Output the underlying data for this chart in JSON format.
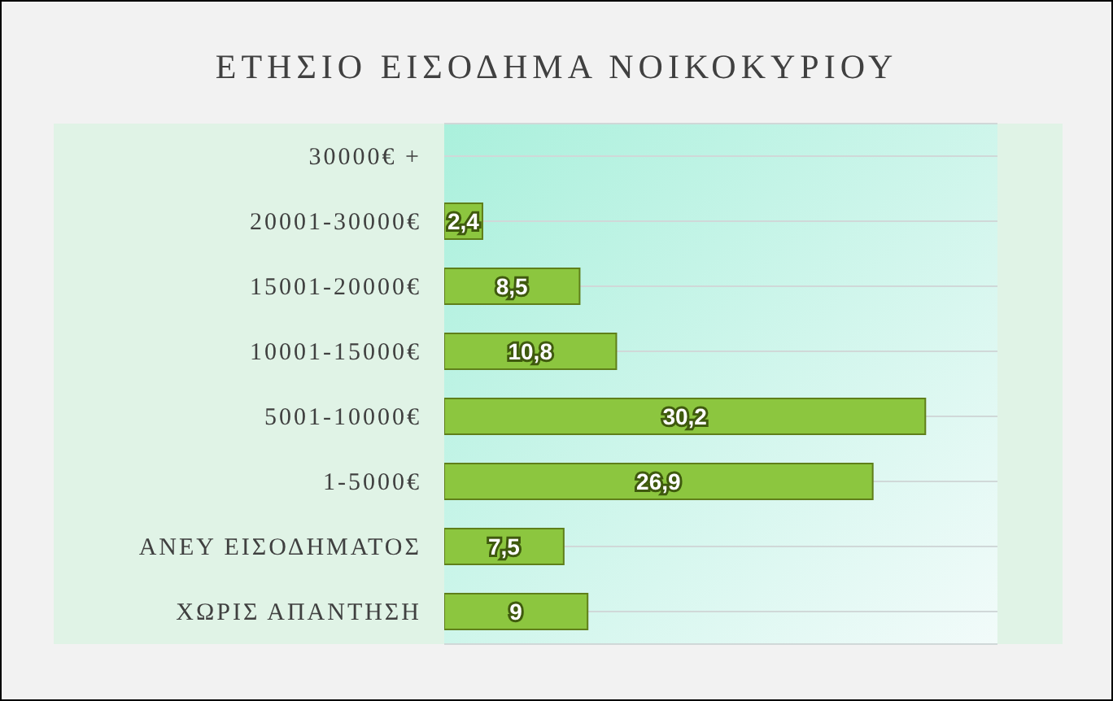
{
  "chart_data": {
    "type": "bar",
    "orientation": "horizontal",
    "title": "ΕΤΗΣΙΟ ΕΙΣΟΔΗΜΑ ΝΟΙΚΟΚΥΡΙΟΥ",
    "categories": [
      "30000€ +",
      "20001-30000€",
      "15001-20000€",
      "10001-15000€",
      "5001-10000€",
      "1-5000€",
      "ΑΝΕΥ ΕΙΣΟΔΗΜΑΤΟΣ",
      "ΧΩΡΙΣ ΑΠΑΝΤΗΣΗ"
    ],
    "values": [
      null,
      2.4,
      8.5,
      10.8,
      30.2,
      26.9,
      7.5,
      9
    ],
    "value_labels": [
      null,
      "2,4",
      "8,5",
      "10,8",
      "30,2",
      "26,9",
      "7,5",
      "9"
    ],
    "color": "#8cc63f",
    "grid": "y"
  }
}
